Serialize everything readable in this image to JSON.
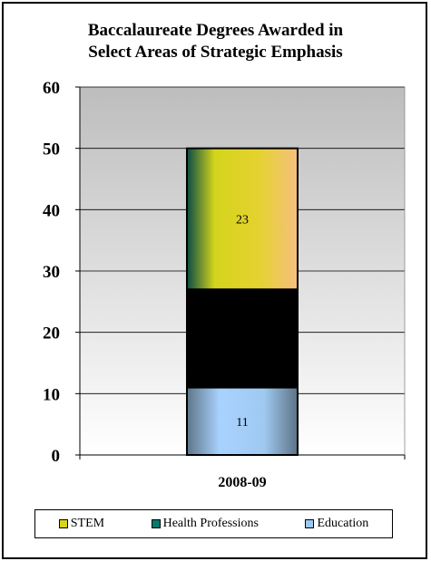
{
  "chart_data": {
    "type": "bar",
    "stacked": true,
    "title": [
      "Baccalaureate Degrees Awarded in",
      "Select Areas of Strategic Emphasis"
    ],
    "categories": [
      "2008-09"
    ],
    "series": [
      {
        "name": "Education",
        "values": [
          11
        ],
        "color": "#9cc8f5"
      },
      {
        "name": "Health Professions",
        "values": [
          16
        ],
        "color": "#067a6e"
      },
      {
        "name": "STEM",
        "values": [
          23
        ],
        "color": "#d8d41c"
      }
    ],
    "ylim": [
      0,
      60
    ],
    "yticks": [
      0,
      10,
      20,
      30,
      40,
      50,
      60
    ],
    "grid": true,
    "legend_position": "bottom",
    "legend_order": [
      "STEM",
      "Health Professions",
      "Education"
    ]
  }
}
